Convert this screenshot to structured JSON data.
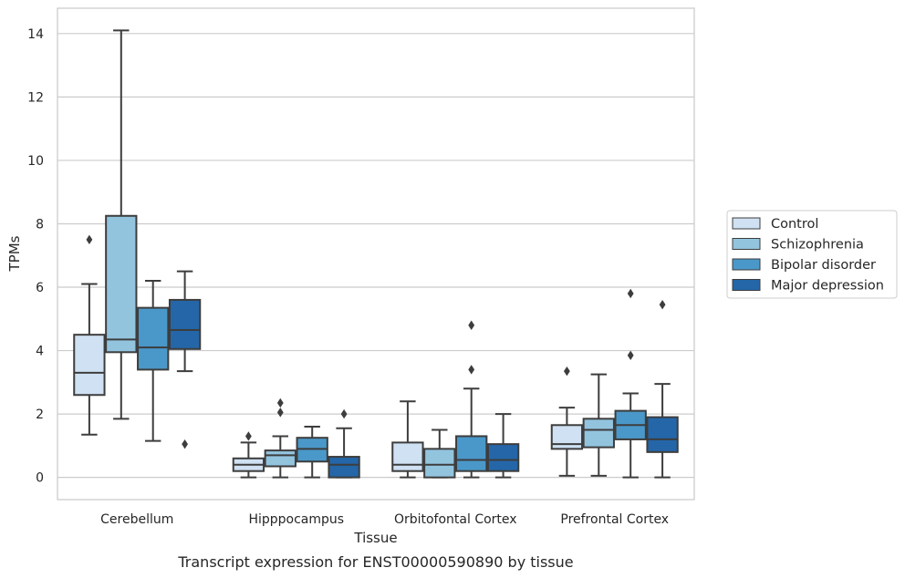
{
  "chart_data": {
    "type": "box",
    "xlabel": "Tissue",
    "ylabel": "TPMs",
    "caption": "Transcript expression for ENST00000590890 by tissue",
    "ylim": [
      -0.7,
      14.8
    ],
    "yticks": [
      0,
      2,
      4,
      6,
      8,
      10,
      12,
      14
    ],
    "grid": true,
    "legend_position": "right",
    "categories": [
      "Cerebellum",
      "Hipppocampus",
      "Orbitofontal Cortex",
      "Prefrontal Cortex"
    ],
    "series": [
      {
        "name": "Control",
        "color": "#cfe1f2",
        "boxes": [
          {
            "whislo": 1.35,
            "q1": 2.6,
            "med": 3.3,
            "q3": 4.5,
            "whishi": 6.1,
            "fliers": [
              7.5
            ]
          },
          {
            "whislo": 0.0,
            "q1": 0.2,
            "med": 0.4,
            "q3": 0.6,
            "whishi": 1.1,
            "fliers": [
              1.3
            ]
          },
          {
            "whislo": 0.0,
            "q1": 0.2,
            "med": 0.4,
            "q3": 1.1,
            "whishi": 2.4,
            "fliers": []
          },
          {
            "whislo": 0.05,
            "q1": 0.9,
            "med": 1.05,
            "q3": 1.65,
            "whishi": 2.2,
            "fliers": [
              3.35
            ]
          }
        ]
      },
      {
        "name": "Schizophrenia",
        "color": "#93c4de",
        "boxes": [
          {
            "whislo": 1.85,
            "q1": 3.95,
            "med": 4.35,
            "q3": 8.25,
            "whishi": 14.1,
            "fliers": []
          },
          {
            "whislo": 0.0,
            "q1": 0.35,
            "med": 0.7,
            "q3": 0.85,
            "whishi": 1.3,
            "fliers": [
              2.05,
              2.35
            ]
          },
          {
            "whislo": 0.0,
            "q1": 0.0,
            "med": 0.4,
            "q3": 0.9,
            "whishi": 1.5,
            "fliers": []
          },
          {
            "whislo": 0.05,
            "q1": 0.95,
            "med": 1.5,
            "q3": 1.85,
            "whishi": 3.25,
            "fliers": []
          }
        ]
      },
      {
        "name": "Bipolar disorder",
        "color": "#4a98c9",
        "boxes": [
          {
            "whislo": 1.15,
            "q1": 3.4,
            "med": 4.1,
            "q3": 5.35,
            "whishi": 6.2,
            "fliers": []
          },
          {
            "whislo": 0.0,
            "q1": 0.5,
            "med": 0.9,
            "q3": 1.25,
            "whishi": 1.6,
            "fliers": []
          },
          {
            "whislo": 0.0,
            "q1": 0.2,
            "med": 0.55,
            "q3": 1.3,
            "whishi": 2.8,
            "fliers": [
              3.4,
              4.8
            ]
          },
          {
            "whislo": 0.0,
            "q1": 1.2,
            "med": 1.65,
            "q3": 2.1,
            "whishi": 2.65,
            "fliers": [
              3.85,
              5.8
            ]
          }
        ]
      },
      {
        "name": "Major depression",
        "color": "#2466a8",
        "boxes": [
          {
            "whislo": 3.35,
            "q1": 4.05,
            "med": 4.65,
            "q3": 5.6,
            "whishi": 6.5,
            "fliers": [
              1.05
            ]
          },
          {
            "whislo": 0.0,
            "q1": 0.0,
            "med": 0.4,
            "q3": 0.65,
            "whishi": 1.55,
            "fliers": [
              2.0
            ]
          },
          {
            "whislo": 0.0,
            "q1": 0.2,
            "med": 0.55,
            "q3": 1.05,
            "whishi": 2.0,
            "fliers": []
          },
          {
            "whislo": 0.0,
            "q1": 0.8,
            "med": 1.2,
            "q3": 1.9,
            "whishi": 2.95,
            "fliers": [
              5.45
            ]
          }
        ]
      }
    ]
  }
}
